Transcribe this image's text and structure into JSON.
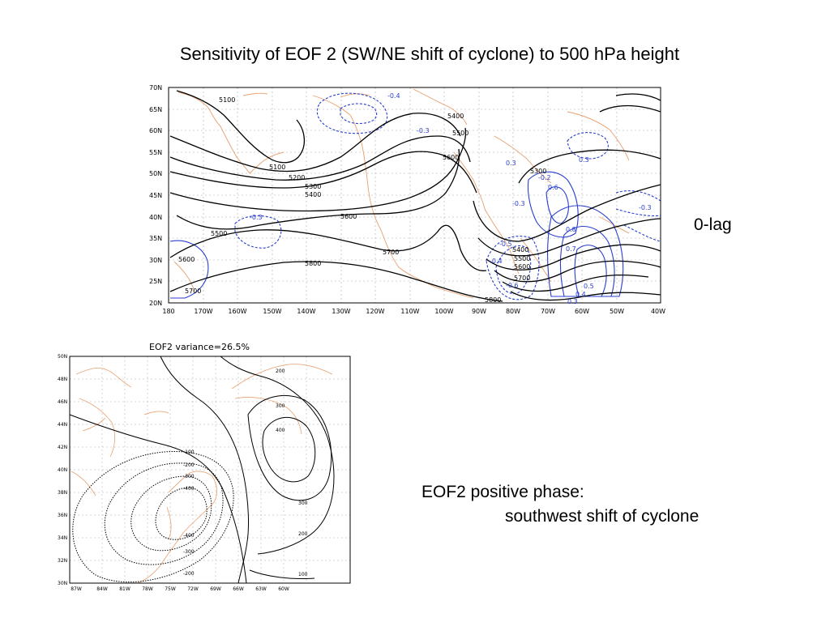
{
  "title": "Sensitivity of EOF 2 (SW/NE shift of cyclone) to 500 hPa height",
  "lag_label": "0-lag",
  "phase_label_line1": "EOF2 positive phase:",
  "phase_label_line2": "southwest shift of cyclone",
  "colors": {
    "coast": "#e8a070",
    "sensitivity": "#2a3fcf",
    "height": "#000000",
    "grid": "#aaaaaa"
  },
  "map1": {
    "lat_labels": [
      "70N",
      "65N",
      "60N",
      "55N",
      "50N",
      "45N",
      "40N",
      "35N",
      "30N",
      "25N",
      "20N"
    ],
    "lon_labels": [
      "180",
      "170W",
      "160W",
      "150W",
      "140W",
      "130W",
      "120W",
      "110W",
      "100W",
      "90W",
      "80W",
      "70W",
      "60W",
      "50W",
      "40W"
    ],
    "height_contours": [
      "5100",
      "5100",
      "5200",
      "5300",
      "5400",
      "5400",
      "5500",
      "5600",
      "5600",
      "5700",
      "5800",
      "5300",
      "5400",
      "5500",
      "5600",
      "5700",
      "5800",
      "5500",
      "5600",
      "5700"
    ],
    "sensitivity_labels": [
      "-0.4",
      "-0.3",
      "-0.3",
      "-0.3",
      "0.3",
      "0.3",
      "-0.2",
      "0.6",
      "-0.3",
      "0.8",
      "0.7",
      "-0.4",
      "-0.5",
      "-0.6",
      "0.5",
      "0.4",
      "0.3"
    ]
  },
  "map2": {
    "title": "EOF2   variance=26.5%",
    "lat_labels": [
      "50N",
      "48N",
      "46N",
      "44N",
      "42N",
      "40N",
      "38N",
      "36N",
      "34N",
      "32N",
      "30N"
    ],
    "lon_labels": [
      "87W",
      "84W",
      "81W",
      "78W",
      "75W",
      "72W",
      "69W",
      "66W",
      "63W",
      "60W"
    ],
    "contour_labels": [
      "200",
      "300",
      "400",
      "300",
      "200",
      "100",
      "-100",
      "-200",
      "-300",
      "-400",
      "-400",
      "-300",
      "-200"
    ]
  }
}
